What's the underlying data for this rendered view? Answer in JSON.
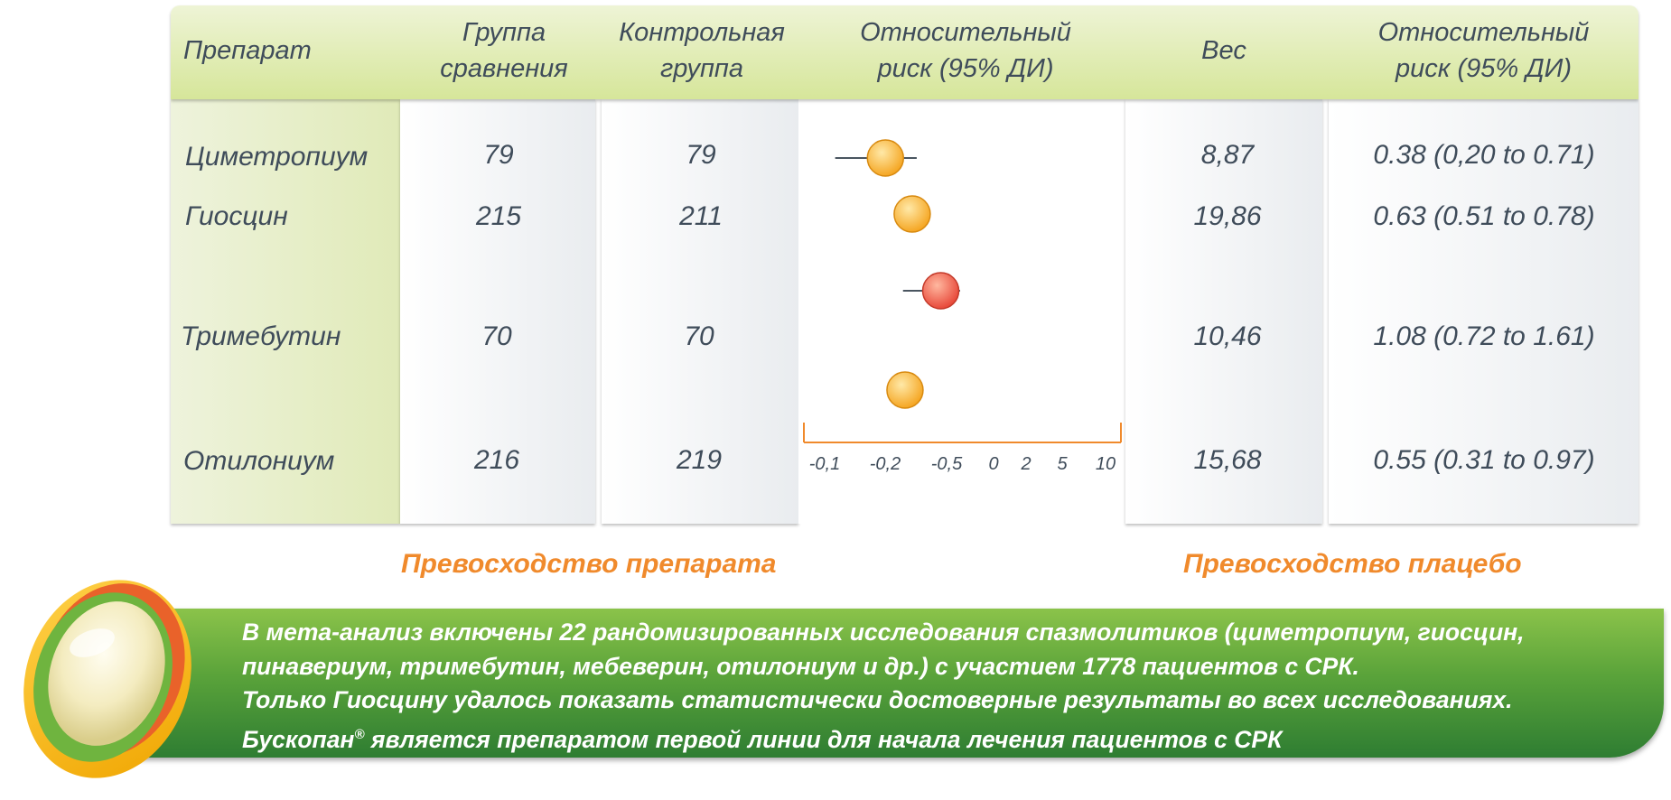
{
  "headers": {
    "drug": "Препарат",
    "comparison": "Группа\nсравнения",
    "control": "Контрольная\nгруппа",
    "rr_plot": "Относительный\nриск (95% ДИ)",
    "weight": "Вес",
    "rr_text": "Относительный\nриск (95% ДИ)"
  },
  "rows": [
    {
      "drug": "Циметропиум",
      "comparison": "79",
      "control": "79",
      "weight": "8,87",
      "rr": "0.38 (0,20  to 0.71)"
    },
    {
      "drug": "Гиосцин",
      "comparison": "215",
      "control": "211",
      "weight": "19,86",
      "rr": "0.63 (0.51 to 0.78)"
    },
    {
      "drug": "Тримебутин",
      "comparison": "70",
      "control": "70",
      "weight": "10,46",
      "rr": "1.08 (0.72 to 1.61)"
    },
    {
      "drug": "Отилониум",
      "comparison": "216",
      "control": "219",
      "weight": "15,68",
      "rr": "0.55 (0.31 to 0.97)"
    }
  ],
  "captions": {
    "favours_drug": "Превосходство препарата",
    "favours_placebo": "Превосходство плацебо"
  },
  "banner": {
    "line1": "В мета-анализ включены 22 рандомизированных исследования спазмолитиков (циметропиум, гиосцин,",
    "line2": "пинавериум, тримебутин, мебеверин, отилониум и др.) с участием 1778 пациентов с СРК.",
    "line3": "Только Гиосцину удалось показать статистически достоверные результаты во всех исследованиях.",
    "line4_pre": "Бускопан",
    "line4_reg": "®",
    "line4_post": " является препаратом первой линии для начала лечения пациентов с СРК"
  },
  "colors": {
    "header_band": "#d6e69a",
    "marker_orange": "#f5a623",
    "marker_red": "#e8493a",
    "axis_orange": "#f08a2c",
    "banner_green": "#4c9a35"
  },
  "chart_data": {
    "type": "forest",
    "scale": "log",
    "x_ticks": [
      "-0,1",
      "-0,2",
      "-0,5",
      "0",
      "2",
      "5",
      "10"
    ],
    "studies": [
      {
        "name": "Циметропиум",
        "rr": 0.38,
        "ci": [
          0.2,
          0.71
        ],
        "color": "orange"
      },
      {
        "name": "Гиосцин",
        "rr": 0.63,
        "ci": [
          0.51,
          0.78
        ],
        "color": "orange"
      },
      {
        "name": "Тримебутин",
        "rr": 1.08,
        "ci": [
          0.72,
          1.61
        ],
        "color": "red"
      },
      {
        "name": "Отилониум",
        "rr": 0.55,
        "ci": [
          0.31,
          0.97
        ],
        "color": "orange"
      }
    ]
  }
}
